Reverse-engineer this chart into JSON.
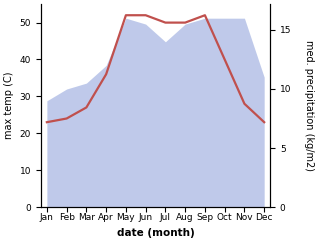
{
  "months": [
    "Jan",
    "Feb",
    "Mar",
    "Apr",
    "May",
    "Jun",
    "Jul",
    "Aug",
    "Sep",
    "Oct",
    "Nov",
    "Dec"
  ],
  "temperature": [
    23,
    24,
    27,
    36,
    52,
    52,
    50,
    50,
    52,
    40,
    28,
    23
  ],
  "precipitation": [
    9.0,
    10.0,
    10.5,
    12.0,
    16.0,
    15.5,
    14.0,
    15.5,
    16.0,
    16.0,
    16.0,
    11.0
  ],
  "temp_color": "#c0504d",
  "precip_fill_color": "#b8c4e8",
  "xlabel": "date (month)",
  "ylabel_left": "max temp (C)",
  "ylabel_right": "med. precipitation (kg/m2)",
  "ylim_left": [
    0,
    55
  ],
  "ylim_right": [
    0,
    17.1875
  ],
  "yticks_left": [
    0,
    10,
    20,
    30,
    40,
    50
  ],
  "yticks_right": [
    0,
    5,
    10,
    15
  ],
  "bg_color": "#ffffff",
  "temp_lw": 1.6,
  "xlabel_fontsize": 7.5,
  "ylabel_fontsize": 7,
  "tick_fontsize": 6.5
}
